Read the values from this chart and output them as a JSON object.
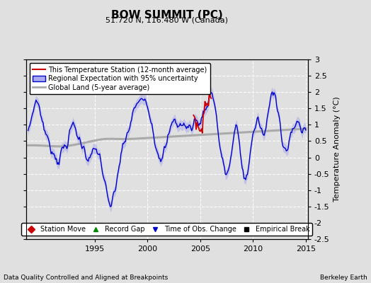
{
  "title": "BOW SUMMIT (PC)",
  "subtitle": "51.720 N, 116.480 W (Canada)",
  "ylabel": "Temperature Anomaly (°C)",
  "footer_left": "Data Quality Controlled and Aligned at Breakpoints",
  "footer_right": "Berkeley Earth",
  "ylim": [
    -2.5,
    3.0
  ],
  "xlim": [
    1988.5,
    2015.2
  ],
  "yticks": [
    -2.5,
    -2,
    -1.5,
    -1,
    -0.5,
    0,
    0.5,
    1,
    1.5,
    2,
    2.5,
    3
  ],
  "xticks": [
    1995,
    2000,
    2005,
    2010,
    2015
  ],
  "xticklabels": [
    "1995",
    "2000",
    "2005",
    "2010",
    "2015"
  ],
  "bg_color": "#e0e0e0",
  "line_color_station": "#cc0000",
  "line_color_regional": "#0000cc",
  "fill_color_regional": "#aaaaee",
  "line_color_global": "#aaaaaa",
  "legend_entries": [
    "This Temperature Station (12-month average)",
    "Regional Expectation with 95% uncertainty",
    "Global Land (5-year average)"
  ],
  "marker_legend": [
    {
      "label": "Station Move",
      "color": "#cc0000",
      "marker": "D"
    },
    {
      "label": "Record Gap",
      "color": "#008800",
      "marker": "^"
    },
    {
      "label": "Time of Obs. Change",
      "color": "#0000cc",
      "marker": "v"
    },
    {
      "label": "Empirical Break",
      "color": "#000000",
      "marker": "s"
    }
  ]
}
